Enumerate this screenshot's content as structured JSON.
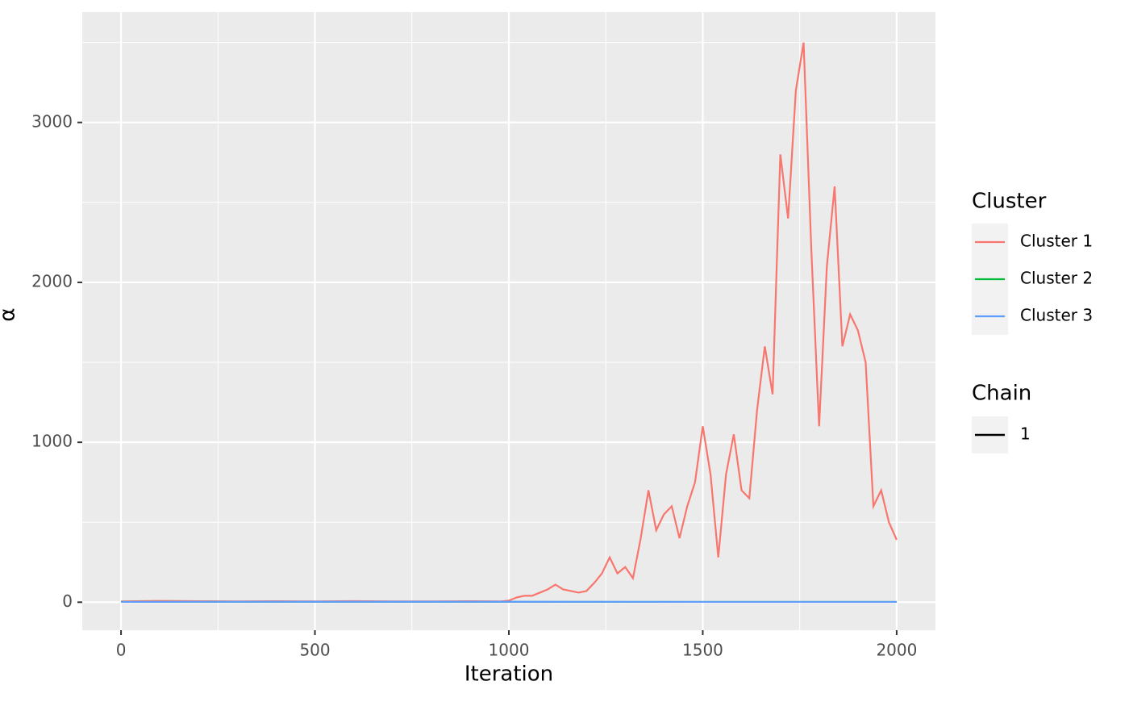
{
  "chart_data": {
    "type": "line",
    "x_label": "Iteration",
    "y_label": "α",
    "xlim": [
      -100,
      2100
    ],
    "xticks": [
      0,
      500,
      1000,
      1500,
      2000
    ],
    "x_minor_grid": [
      250,
      750,
      1250,
      1750
    ],
    "ylim": [
      -175,
      3690
    ],
    "yticks": [
      0,
      1000,
      2000,
      3000
    ],
    "y_minor_grid": [
      500,
      1500,
      2500,
      3500
    ],
    "grid": true,
    "legend_title": "Cluster",
    "legend_position": "right",
    "series": [
      {
        "name": "Cluster 1",
        "color": "#F8766D",
        "x": [
          0,
          100,
          200,
          300,
          400,
          500,
          600,
          700,
          800,
          900,
          980,
          1000,
          1020,
          1040,
          1060,
          1080,
          1100,
          1120,
          1140,
          1160,
          1180,
          1200,
          1220,
          1240,
          1260,
          1280,
          1300,
          1320,
          1340,
          1360,
          1380,
          1400,
          1420,
          1440,
          1460,
          1480,
          1500,
          1520,
          1540,
          1560,
          1580,
          1600,
          1620,
          1640,
          1660,
          1680,
          1700,
          1720,
          1740,
          1760,
          1780,
          1800,
          1820,
          1840,
          1860,
          1880,
          1900,
          1920,
          1940,
          1960,
          1980,
          2000
        ],
        "values": [
          5,
          8,
          6,
          5,
          6,
          5,
          7,
          5,
          5,
          6,
          5,
          10,
          30,
          40,
          40,
          60,
          80,
          110,
          80,
          70,
          60,
          70,
          120,
          180,
          280,
          180,
          220,
          150,
          400,
          700,
          450,
          550,
          600,
          400,
          600,
          750,
          1100,
          800,
          280,
          800,
          1050,
          700,
          650,
          1200,
          1600,
          1300,
          2800,
          2400,
          3200,
          3500,
          2200,
          1100,
          2100,
          2600,
          1600,
          1800,
          1700,
          1500,
          600,
          700,
          500,
          390
        ]
      },
      {
        "name": "Cluster 2",
        "color": "#00BA38",
        "x": [
          0,
          500,
          1000,
          1500,
          2000
        ],
        "values": [
          2,
          2,
          2,
          2,
          2
        ]
      },
      {
        "name": "Cluster 3",
        "color": "#619CFF",
        "x": [
          0,
          500,
          1000,
          1500,
          2000
        ],
        "values": [
          2,
          3,
          3,
          2,
          2
        ]
      }
    ],
    "chain_legend": {
      "title": "Chain",
      "entries": [
        "1"
      ],
      "color": "#000000"
    }
  }
}
